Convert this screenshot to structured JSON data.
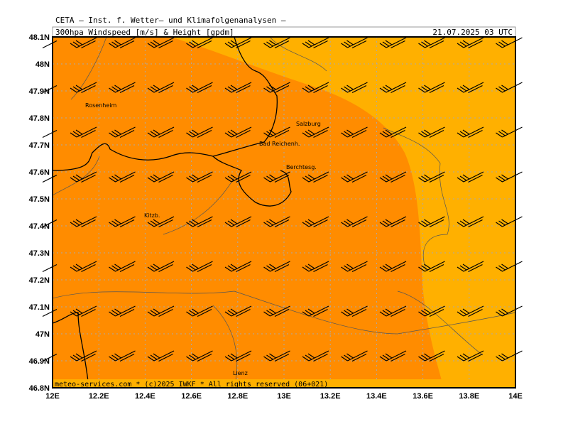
{
  "header": {
    "title": "CETA — Inst. f. Wetter— und Klimafolgenanalysen —",
    "product": "300hpa Windspeed [m/s] & Height [gpdm]",
    "time": "21.07.2025 03 UTC"
  },
  "y_axis": {
    "ticks": [
      "48.1N",
      "48N",
      "47.9N",
      "47.8N",
      "47.7N",
      "47.6N",
      "47.5N",
      "47.4N",
      "47.3N",
      "47.2N",
      "47.1N",
      "47N",
      "46.9N",
      "46.8N"
    ]
  },
  "x_axis": {
    "ticks": [
      "12E",
      "12.2E",
      "12.4E",
      "12.6E",
      "12.8E",
      "13E",
      "13.2E",
      "13.4E",
      "13.6E",
      "13.8E",
      "14E"
    ]
  },
  "places": [
    {
      "label": "Rosenheim"
    },
    {
      "label": "Salzburg"
    },
    {
      "label": "Bad Reichenh."
    },
    {
      "label": "Berchtesg."
    },
    {
      "label": "Kitzb."
    },
    {
      "label": "Lienz"
    }
  ],
  "footer": "meteo-services.com * (c)2025 IWKF * All rights reserved (06+021)"
}
